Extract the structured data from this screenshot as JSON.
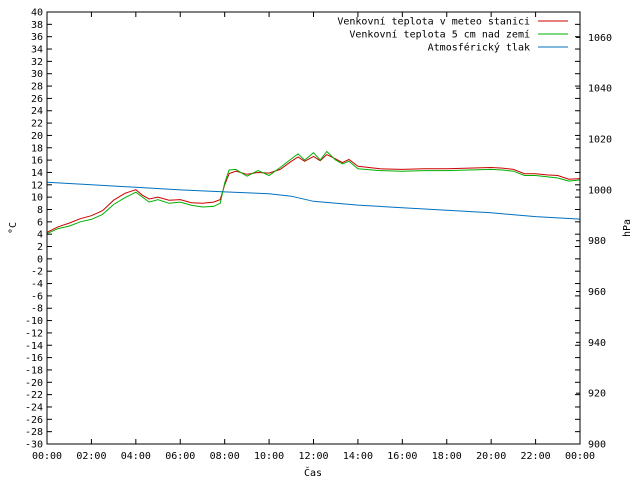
{
  "chart_data": {
    "type": "line",
    "xlabel": "Čas",
    "ylabel": "°C",
    "y2label": "hPa",
    "ylim": [
      -30,
      40
    ],
    "y2lim": [
      900,
      1070
    ],
    "yticks": [
      "-30",
      "-28",
      "-26",
      "-24",
      "-22",
      "-20",
      "-18",
      "-16",
      "-14",
      "-12",
      "-10",
      "-8",
      "-6",
      "-4",
      "-2",
      "0",
      "2",
      "4",
      "6",
      "8",
      "10",
      "12",
      "14",
      "16",
      "18",
      "20",
      "22",
      "24",
      "26",
      "28",
      "30",
      "32",
      "34",
      "36",
      "38",
      "40"
    ],
    "y2ticks": [
      "900",
      "920",
      "940",
      "960",
      "980",
      "1000",
      "1020",
      "1040",
      "1060"
    ],
    "xticks": [
      "00:00",
      "02:00",
      "04:00",
      "06:00",
      "08:00",
      "10:00",
      "12:00",
      "14:00",
      "16:00",
      "18:00",
      "20:00",
      "22:00",
      "00:00"
    ],
    "legend_position": "top-right",
    "series": [
      {
        "name": "Venkovní teplota v meteo stanici",
        "color": "#cc0000",
        "axis": "left",
        "x": [
          0,
          0.5,
          1,
          1.5,
          2,
          2.5,
          3,
          3.5,
          4,
          4.3,
          4.6,
          5,
          5.5,
          6,
          6.5,
          7,
          7.5,
          7.8,
          8,
          8.2,
          8.5,
          9,
          9.5,
          10,
          10.5,
          11,
          11.3,
          11.6,
          12,
          12.3,
          12.6,
          13,
          13.3,
          13.6,
          14,
          15,
          16,
          17,
          18,
          19,
          20,
          20.5,
          21,
          21.5,
          22,
          22.5,
          23,
          23.5,
          24
        ],
        "y": [
          4.3,
          5.2,
          5.8,
          6.5,
          7.0,
          7.8,
          9.5,
          10.6,
          11.2,
          10.3,
          9.7,
          10.0,
          9.5,
          9.6,
          9.1,
          9.0,
          9.2,
          9.6,
          12.0,
          13.8,
          14.2,
          13.7,
          14.0,
          13.9,
          14.5,
          15.8,
          16.5,
          15.8,
          16.6,
          15.9,
          16.9,
          16.2,
          15.6,
          16.1,
          15.0,
          14.6,
          14.5,
          14.6,
          14.6,
          14.7,
          14.8,
          14.7,
          14.5,
          13.8,
          13.8,
          13.6,
          13.5,
          12.9,
          13.0
        ]
      },
      {
        "name": "Venkovní teplota 5 cm nad zemí",
        "color": "#00b000",
        "axis": "left",
        "x": [
          0,
          0.5,
          1,
          1.5,
          2,
          2.5,
          3,
          3.5,
          4,
          4.3,
          4.6,
          5,
          5.5,
          6,
          6.5,
          7,
          7.5,
          7.8,
          8,
          8.2,
          8.5,
          9,
          9.5,
          10,
          10.5,
          11,
          11.3,
          11.6,
          12,
          12.3,
          12.6,
          13,
          13.3,
          13.6,
          14,
          15,
          16,
          17,
          18,
          19,
          20,
          20.5,
          21,
          21.5,
          22,
          22.5,
          23,
          23.5,
          24
        ],
        "y": [
          4.1,
          4.9,
          5.3,
          6.0,
          6.4,
          7.2,
          8.8,
          9.9,
          10.8,
          10.0,
          9.2,
          9.6,
          9.0,
          9.2,
          8.7,
          8.4,
          8.5,
          9.0,
          12.3,
          14.4,
          14.5,
          13.4,
          14.3,
          13.5,
          14.8,
          16.2,
          17.0,
          16.0,
          17.2,
          16.0,
          17.4,
          16.0,
          15.4,
          15.8,
          14.6,
          14.3,
          14.2,
          14.3,
          14.3,
          14.4,
          14.5,
          14.4,
          14.2,
          13.5,
          13.5,
          13.3,
          13.1,
          12.6,
          12.8
        ]
      },
      {
        "name": "Atmosférický tlak",
        "color": "#0070c0",
        "axis": "right",
        "x": [
          0,
          2,
          4,
          6,
          8,
          10,
          11,
          12,
          14,
          16,
          18,
          20,
          22,
          24
        ],
        "y": [
          1003.0,
          1002.0,
          1001.0,
          1000.0,
          999.2,
          998.5,
          997.5,
          995.5,
          994.0,
          993.0,
          992.0,
          991.0,
          989.5,
          988.5
        ]
      }
    ]
  }
}
